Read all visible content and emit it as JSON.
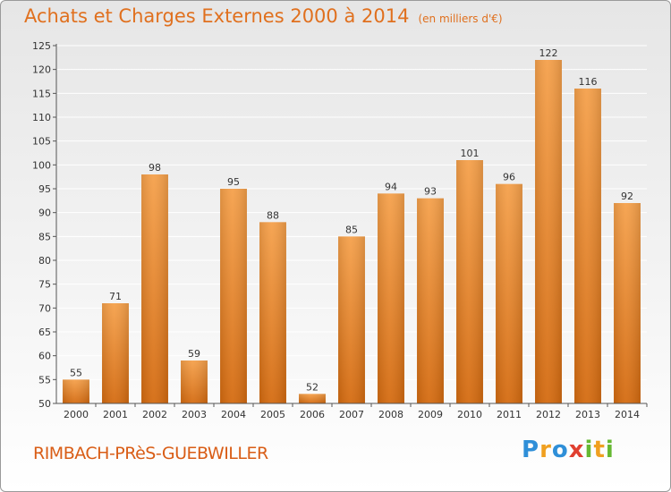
{
  "chart_data": {
    "type": "bar",
    "title": "Achats et Charges Externes 2000 à 2014",
    "subtitle": "(en milliers d'€)",
    "categories": [
      "2000",
      "2001",
      "2002",
      "2003",
      "2004",
      "2005",
      "2006",
      "2007",
      "2008",
      "2009",
      "2010",
      "2011",
      "2012",
      "2013",
      "2014"
    ],
    "values": [
      55,
      71,
      98,
      59,
      95,
      88,
      52,
      85,
      94,
      93,
      101,
      96,
      122,
      116,
      92
    ],
    "ylim": [
      50,
      125
    ],
    "yticks": [
      50,
      55,
      60,
      65,
      70,
      75,
      80,
      85,
      90,
      95,
      100,
      105,
      110,
      115,
      120,
      125
    ],
    "xlabel": "",
    "ylabel": "",
    "grid": true,
    "bar_color_top": "#f5a04a",
    "bar_color_bottom": "#d46a0f",
    "grid_color": "#ffffff"
  },
  "footer": {
    "commune": "RIMBACH-PRèS-GUEBWILLER",
    "logo": [
      "P",
      "r",
      "o",
      "x",
      "i",
      "t",
      "i"
    ]
  }
}
